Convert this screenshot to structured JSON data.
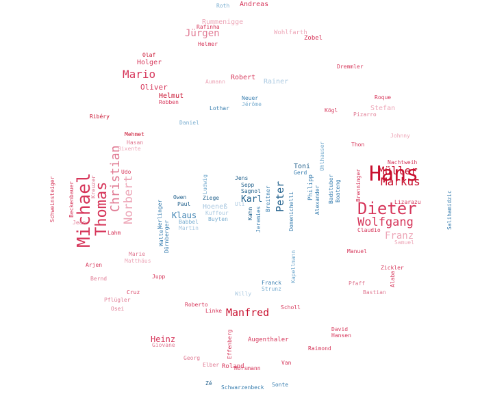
{
  "colors": {
    "deep_red": "#c8102e",
    "red": "#d6365a",
    "pink": "#e07a93",
    "light_pink": "#eda7b8",
    "deep_blue": "#1f5f8b",
    "blue": "#3a7fb0",
    "light_blue": "#7aaed0",
    "pale_blue": "#a9c8e0"
  },
  "words": [
    {
      "text": "Hans",
      "color": "#c8102e"
    },
    {
      "text": "Dieter",
      "color": "#d6365a"
    },
    {
      "text": "Michael",
      "color": "#d6365a"
    },
    {
      "text": "Thomas",
      "color": "#d6365a"
    },
    {
      "text": "Christian",
      "color": "#e07a93"
    },
    {
      "text": "Norbert",
      "color": "#eda7b8"
    },
    {
      "text": "Wolfgang",
      "color": "#d6365a"
    },
    {
      "text": "Müller",
      "color": "#c8102e"
    },
    {
      "text": "Markus",
      "color": "#c8102e"
    },
    {
      "text": "Franz",
      "color": "#eda7b8"
    },
    {
      "text": "Manfred",
      "color": "#c8102e"
    },
    {
      "text": "Peter",
      "color": "#1f5f8b"
    },
    {
      "text": "Mario",
      "color": "#d6365a"
    },
    {
      "text": "Jürgen",
      "color": "#e07a93"
    },
    {
      "text": "Karl",
      "color": "#1f5f8b"
    },
    {
      "text": "Heinz",
      "color": "#d6365a"
    },
    {
      "text": "Klaus",
      "color": "#3a7fb0"
    },
    {
      "text": "Oliver",
      "color": "#d6365a"
    },
    {
      "text": "Holger",
      "color": "#d6365a"
    },
    {
      "text": "Robert",
      "color": "#d6365a"
    },
    {
      "text": "Rainer",
      "color": "#a9c8e0"
    },
    {
      "text": "Stefan",
      "color": "#eda7b8"
    },
    {
      "text": "Helmut",
      "color": "#c8102e"
    },
    {
      "text": "Rummenigge",
      "color": "#eda7b8"
    },
    {
      "text": "Andreas",
      "color": "#d6365a"
    },
    {
      "text": "Roth",
      "color": "#7aaed0"
    },
    {
      "text": "Wohlfarth",
      "color": "#eda7b8"
    },
    {
      "text": "Zobel",
      "color": "#d6365a"
    },
    {
      "text": "Roland",
      "color": "#d6365a"
    },
    {
      "text": "Augenthaler",
      "color": "#d6365a"
    },
    {
      "text": "Hoeneß",
      "color": "#a9c8e0"
    },
    {
      "text": "Toni",
      "color": "#1f5f8b"
    },
    {
      "text": "Gerd",
      "color": "#3a7fb0"
    },
    {
      "text": "Philipp",
      "color": "#3a7fb0"
    },
    {
      "text": "Alexander",
      "color": "#3a7fb0"
    },
    {
      "text": "Badstuber",
      "color": "#3a7fb0"
    },
    {
      "text": "Ohlhauser",
      "color": "#7aaed0"
    },
    {
      "text": "Boateng",
      "color": "#3a7fb0"
    },
    {
      "text": "Brenninger",
      "color": "#d6365a"
    },
    {
      "text": "Claudio",
      "color": "#d6365a"
    },
    {
      "text": "Lizarazu",
      "color": "#d6365a"
    },
    {
      "text": "Nachtweih",
      "color": "#d6365a"
    },
    {
      "text": "Samuel",
      "color": "#eda7b8"
    },
    {
      "text": "Manuel",
      "color": "#d6365a"
    },
    {
      "text": "Zickler",
      "color": "#d6365a"
    },
    {
      "text": "Alaba",
      "color": "#d6365a"
    },
    {
      "text": "Pflügler",
      "color": "#e07a93"
    },
    {
      "text": "Pfaff",
      "color": "#e07a93"
    },
    {
      "text": "Bastian",
      "color": "#e07a93"
    },
    {
      "text": "David",
      "color": "#d6365a"
    },
    {
      "text": "Hansen",
      "color": "#d6365a"
    },
    {
      "text": "Raimond",
      "color": "#d6365a"
    },
    {
      "text": "Van",
      "color": "#d6365a"
    },
    {
      "text": "Scholl",
      "color": "#d6365a"
    },
    {
      "text": "Franck",
      "color": "#3a7fb0"
    },
    {
      "text": "Strunz",
      "color": "#7aaed0"
    },
    {
      "text": "Willy",
      "color": "#a9c8e0"
    },
    {
      "text": "Linke",
      "color": "#d6365a"
    },
    {
      "text": "Roberto",
      "color": "#d6365a"
    },
    {
      "text": "Cruz",
      "color": "#d6365a"
    },
    {
      "text": "Osei",
      "color": "#e07a93"
    },
    {
      "text": "Bernd",
      "color": "#e07a93"
    },
    {
      "text": "Arjen",
      "color": "#d6365a"
    },
    {
      "text": "Marie",
      "color": "#e07a93"
    },
    {
      "text": "Matthäus",
      "color": "#eda7b8"
    },
    {
      "text": "Jupp",
      "color": "#d6365a"
    },
    {
      "text": "Georg",
      "color": "#e07a93"
    },
    {
      "text": "Giovane",
      "color": "#e07a93"
    },
    {
      "text": "Elber",
      "color": "#e07a93"
    },
    {
      "text": "Zé",
      "color": "#1f5f8b"
    },
    {
      "text": "Schwarzenbeck",
      "color": "#3a7fb0"
    },
    {
      "text": "Sonte",
      "color": "#3a7fb0"
    },
    {
      "text": "Horsmann",
      "color": "#d6365a"
    },
    {
      "text": "Effenberg",
      "color": "#d6365a"
    },
    {
      "text": "Kahn",
      "color": "#1f5f8b"
    },
    {
      "text": "Jeremies",
      "color": "#3a7fb0"
    },
    {
      "text": "Domenichelli",
      "color": "#3a7fb0"
    },
    {
      "text": "Breitner",
      "color": "#3a7fb0"
    },
    {
      "text": "Sagnol",
      "color": "#1f5f8b"
    },
    {
      "text": "Sepp",
      "color": "#1f5f8b"
    },
    {
      "text": "Jens",
      "color": "#1f5f8b"
    },
    {
      "text": "Uli",
      "color": "#a9c8e0"
    },
    {
      "text": "Kuffour",
      "color": "#a9c8e0"
    },
    {
      "text": "Buyten",
      "color": "#7aaed0"
    },
    {
      "text": "Owen",
      "color": "#1f5f8b"
    },
    {
      "text": "Ziege",
      "color": "#1f5f8b"
    },
    {
      "text": "Paul",
      "color": "#1f5f8b"
    },
    {
      "text": "Babbel",
      "color": "#7aaed0"
    },
    {
      "text": "Martin",
      "color": "#a9c8e0"
    },
    {
      "text": "Nerlinger",
      "color": "#3a7fb0"
    },
    {
      "text": "Walter",
      "color": "#3a7fb0"
    },
    {
      "text": "Dürnberger",
      "color": "#3a7fb0"
    },
    {
      "text": "Lothar",
      "color": "#3a7fb0"
    },
    {
      "text": "Daniel",
      "color": "#7aaed0"
    },
    {
      "text": "Neuer",
      "color": "#3a7fb0"
    },
    {
      "text": "Jérôme",
      "color": "#7aaed0"
    },
    {
      "text": "Aumann",
      "color": "#eda7b8"
    },
    {
      "text": "Olaf",
      "color": "#c8102e"
    },
    {
      "text": "Robben",
      "color": "#d6365a"
    },
    {
      "text": "Ribéry",
      "color": "#c8102e"
    },
    {
      "text": "Mehmet",
      "color": "#c8102e"
    },
    {
      "text": "Hasan",
      "color": "#e07a93"
    },
    {
      "text": "Bixente",
      "color": "#eda7b8"
    },
    {
      "text": "Helmer",
      "color": "#d6365a"
    },
    {
      "text": "Rafinha",
      "color": "#d6365a"
    },
    {
      "text": "Dremmler",
      "color": "#d6365a"
    },
    {
      "text": "Roque",
      "color": "#d6365a"
    },
    {
      "text": "Kögl",
      "color": "#d6365a"
    },
    {
      "text": "Pizarro",
      "color": "#e07a93"
    },
    {
      "text": "Johnny",
      "color": "#eda7b8"
    },
    {
      "text": "Thon",
      "color": "#d6365a"
    },
    {
      "text": "Udo",
      "color": "#d6365a"
    },
    {
      "text": "Beckenbauer",
      "color": "#d6365a"
    },
    {
      "text": "Jean",
      "color": "#e07a93"
    },
    {
      "text": "Lahm",
      "color": "#d6365a"
    },
    {
      "text": "Schweinsteiger",
      "color": "#d6365a"
    },
    {
      "text": "Salihamidzic",
      "color": "#3a7fb0"
    },
    {
      "text": "Kapellmann",
      "color": "#7aaed0"
    },
    {
      "text": "Ludwig",
      "color": "#7aaed0"
    },
    {
      "text": "Kreuzer",
      "color": "#e07a93"
    }
  ]
}
